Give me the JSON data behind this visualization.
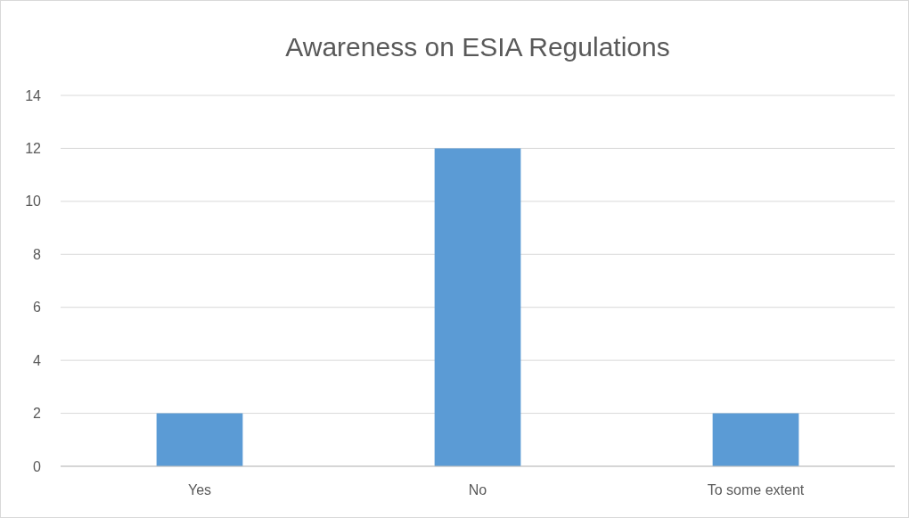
{
  "chart_data": {
    "type": "bar",
    "title": "Awareness on ESIA Regulations",
    "categories": [
      "Yes",
      "No",
      "To some extent"
    ],
    "values": [
      2,
      12,
      2
    ],
    "color": "#5b9bd5",
    "ylim": [
      0,
      14
    ],
    "yticks": [
      0,
      2,
      4,
      6,
      8,
      10,
      12,
      14
    ],
    "grid": "y"
  }
}
